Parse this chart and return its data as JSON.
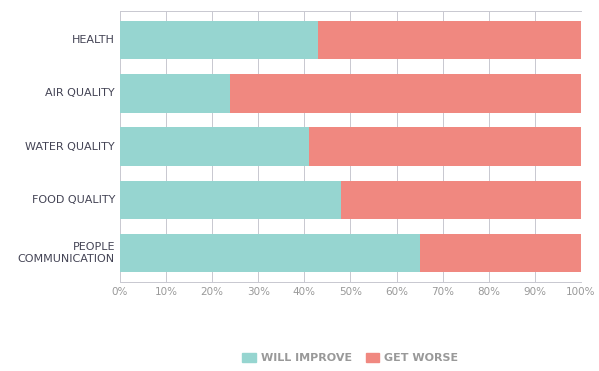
{
  "categories": [
    "HEALTH",
    "AIR QUALITY",
    "WATER QUALITY",
    "FOOD QUALITY",
    "PEOPLE\nCOMMUNICATION"
  ],
  "will_improve": [
    43,
    24,
    41,
    48,
    65
  ],
  "get_worse": [
    57,
    76,
    59,
    52,
    35
  ],
  "color_improve": "#96d5d0",
  "color_worse": "#f08880",
  "background_color": "#ffffff",
  "grid_color": "#c8c8d0",
  "tick_label_color": "#999999",
  "ylabel_color": "#444455",
  "legend_improve": "WILL IMPROVE",
  "legend_worse": "GET WORSE",
  "xlim": [
    0,
    100
  ],
  "xticks": [
    0,
    10,
    20,
    30,
    40,
    50,
    60,
    70,
    80,
    90,
    100
  ],
  "bar_height": 0.72,
  "figsize": [
    5.99,
    3.71
  ],
  "dpi": 100
}
